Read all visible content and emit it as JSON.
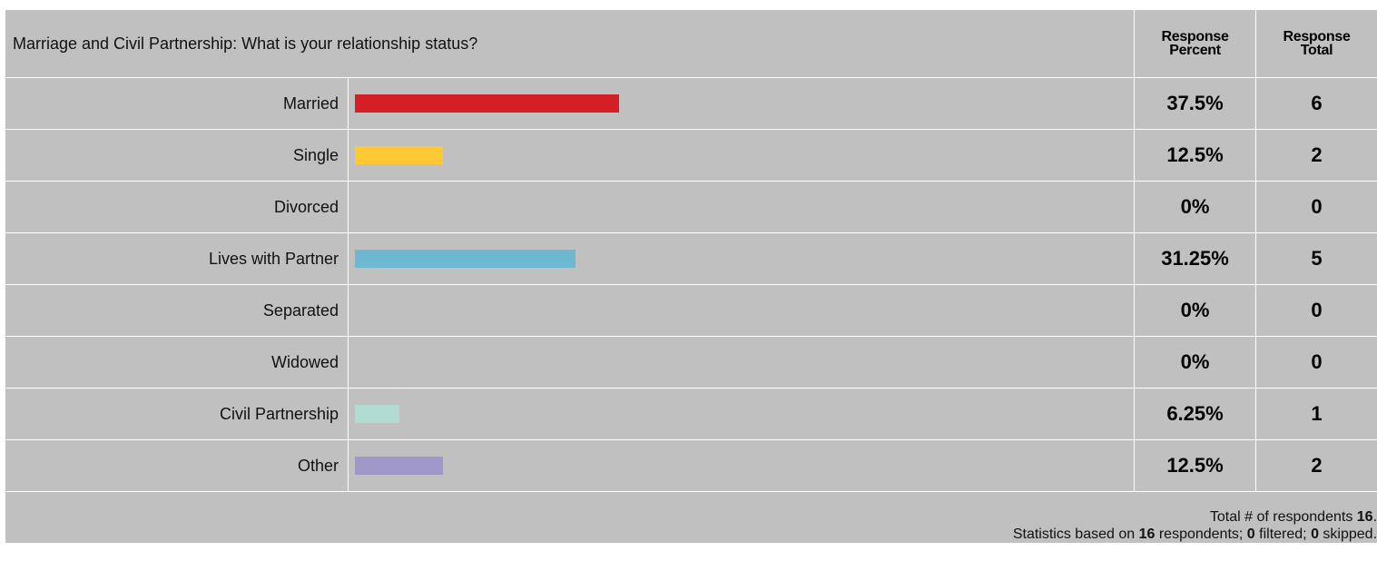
{
  "question": "Marriage and Civil Partnership: What is your relationship status?",
  "columns": {
    "percent_line1": "Response",
    "percent_line2": "Percent",
    "total_line1": "Response",
    "total_line2": "Total"
  },
  "chart_data": {
    "type": "bar",
    "orientation": "horizontal",
    "categories": [
      "Married",
      "Single",
      "Divorced",
      "Lives with Partner",
      "Separated",
      "Widowed",
      "Civil Partnership",
      "Other"
    ],
    "values": [
      37.5,
      12.5,
      0,
      31.25,
      0,
      0,
      6.25,
      12.5
    ],
    "percent_labels": [
      "37.5%",
      "12.5%",
      "0%",
      "31.25%",
      "0%",
      "0%",
      "6.25%",
      "12.5%"
    ],
    "totals": [
      "6",
      "2",
      "0",
      "5",
      "0",
      "0",
      "1",
      "2"
    ],
    "colors": [
      "#d31f25",
      "#ffc933",
      "#c0c0c0",
      "#6bb8d0",
      "#c0c0c0",
      "#c0c0c0",
      "#b1dcd4",
      "#9f98c9"
    ],
    "xlim": [
      0,
      100
    ]
  },
  "footer": {
    "line1_text": "Total # of respondents ",
    "line1_count": "16",
    "line2_prefix": "Statistics based on ",
    "respondents": "16",
    "line2_mid1": " respondents; ",
    "filtered": "0",
    "line2_mid2": " filtered; ",
    "skipped": "0",
    "line2_suffix": " skipped."
  }
}
